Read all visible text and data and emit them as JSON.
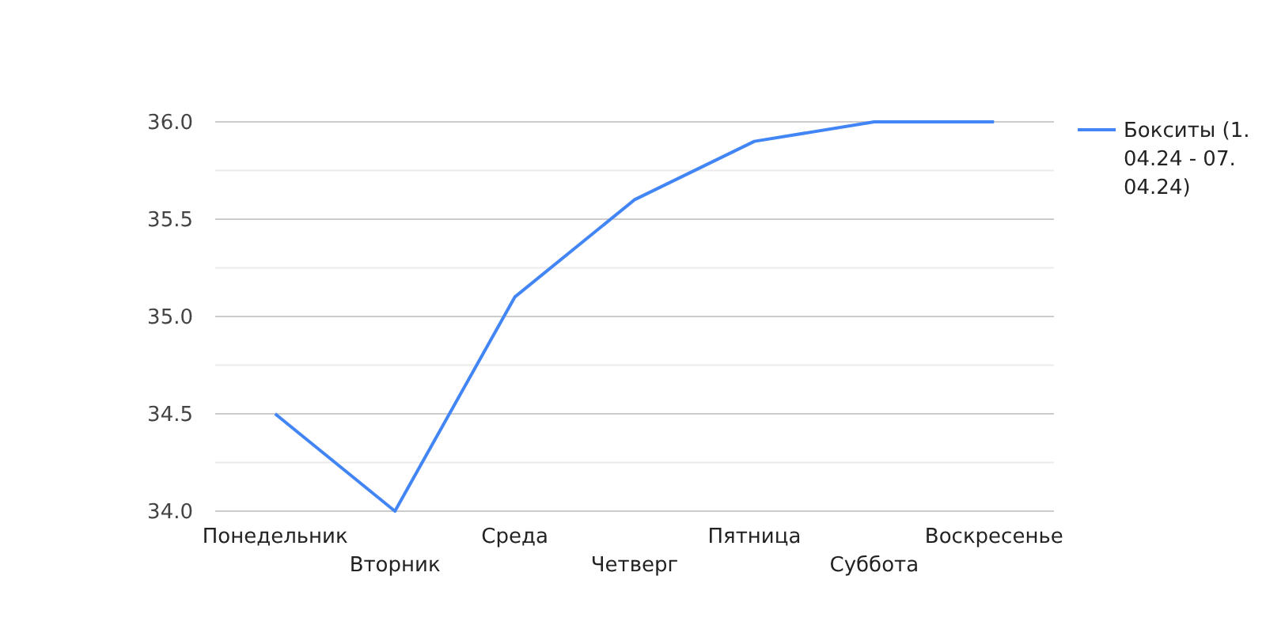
{
  "chart_data": {
    "type": "line",
    "categories": [
      "Понедельник",
      "Вторник",
      "Среда",
      "Четверг",
      "Пятница",
      "Суббота",
      "Воскресенье"
    ],
    "series": [
      {
        "name": "Бокситы (1.04.24 - 07.04.24)",
        "color": "#4285f4",
        "values": [
          34.5,
          34.0,
          35.1,
          35.6,
          35.9,
          36.0,
          36.0
        ]
      }
    ],
    "ylim": [
      34,
      36
    ],
    "yticks": [
      {
        "value": 34,
        "label": "34.0"
      },
      {
        "value": 34.25,
        "label": null
      },
      {
        "value": 34.5,
        "label": "34.5"
      },
      {
        "value": 34.75,
        "label": null
      },
      {
        "value": 35,
        "label": "35.0"
      },
      {
        "value": 35.25,
        "label": null
      },
      {
        "value": 35.5,
        "label": "35.5"
      },
      {
        "value": 35.75,
        "label": null
      },
      {
        "value": 36,
        "label": "36.0"
      }
    ],
    "grid": "y",
    "legend": "right",
    "marker": "none",
    "line_style": "solid"
  }
}
